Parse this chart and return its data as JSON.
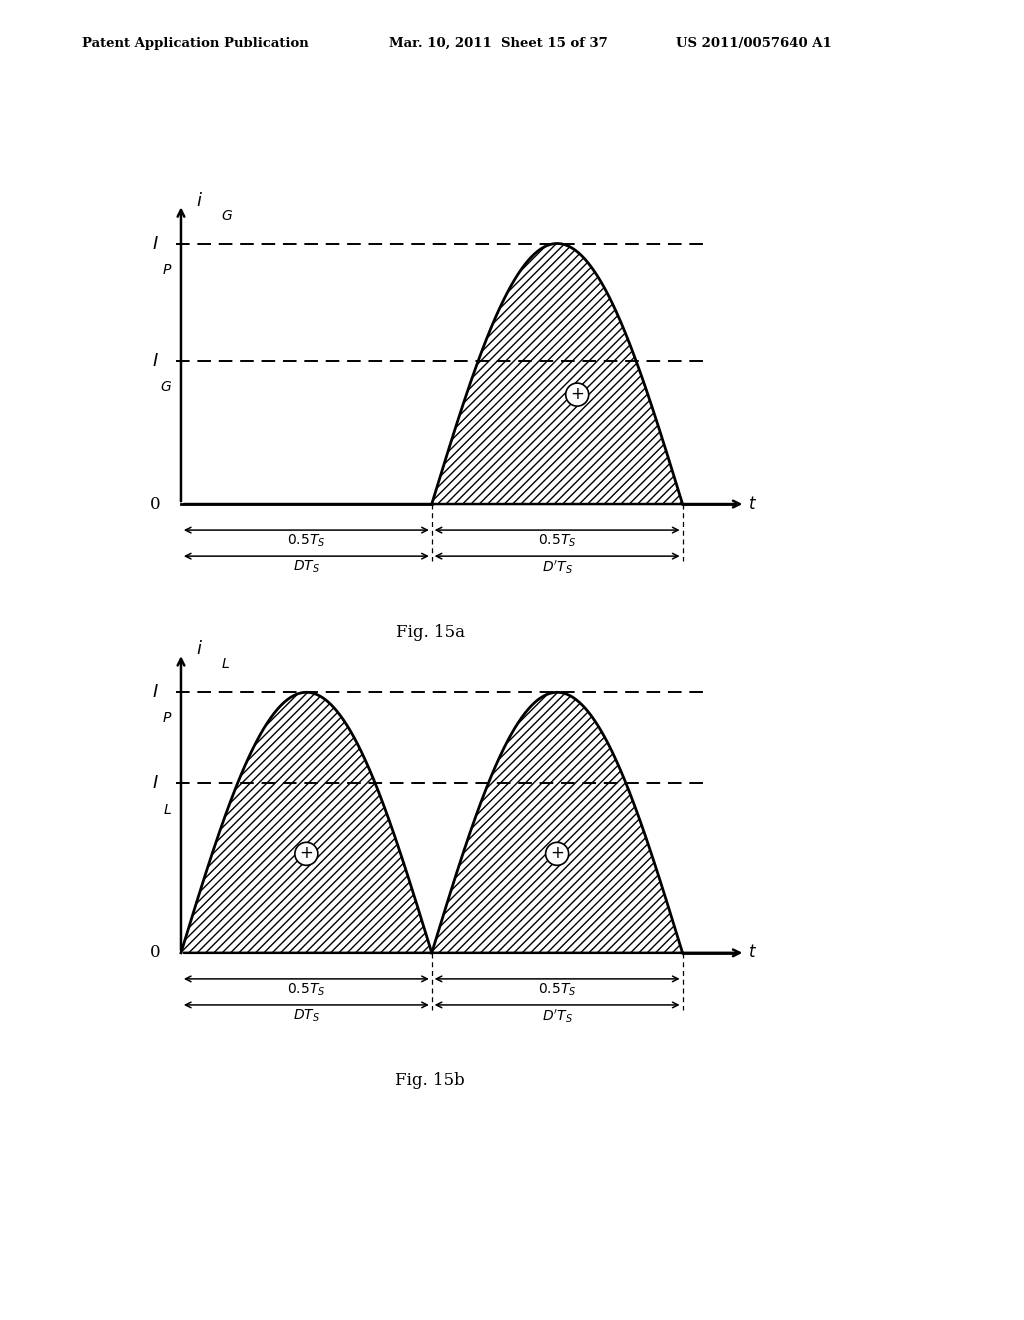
{
  "header_left": "Patent Application Publication",
  "header_mid": "Mar. 10, 2011  Sheet 15 of 37",
  "header_right": "US 2011/0057640 A1",
  "fig_a_label": "Fig. 15a",
  "fig_b_label": "Fig. 15b",
  "IP_val": 1.0,
  "IG_val": 0.55,
  "IL_val": 0.65,
  "bg_color": "#ffffff",
  "line_color": "#000000"
}
